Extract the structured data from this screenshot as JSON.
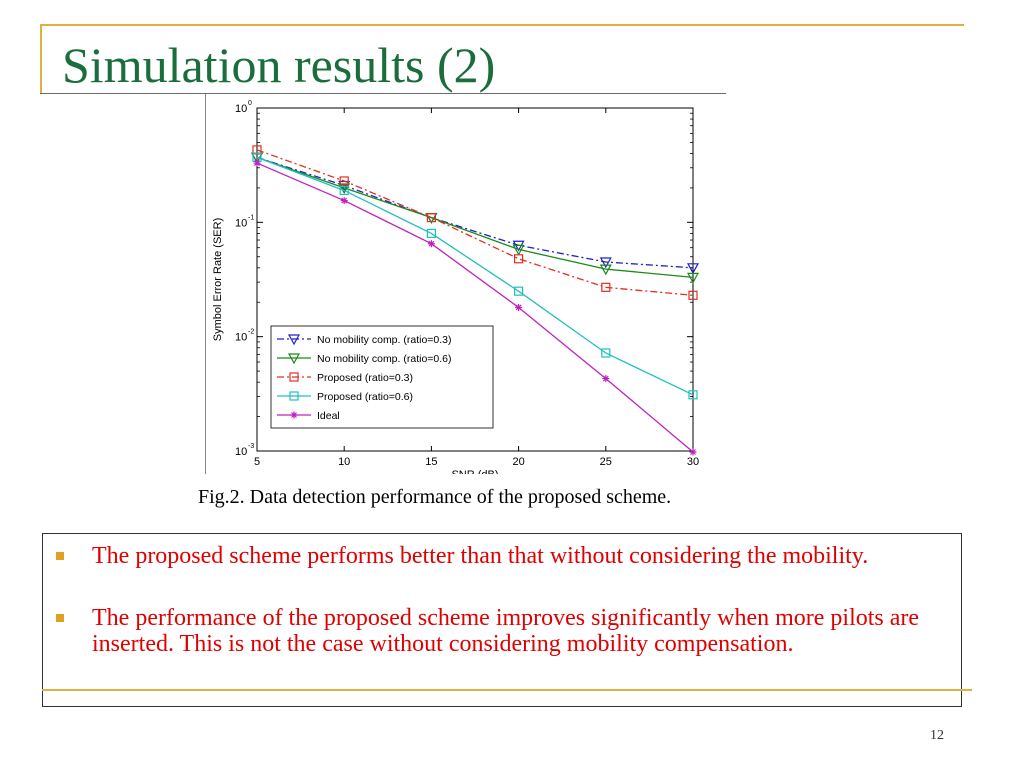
{
  "slide": {
    "title": "Simulation results (2)",
    "caption": "Fig.2. Data detection performance of the proposed scheme.",
    "bullets": [
      "The proposed scheme performs better than that without considering the mobility.",
      "The performance of the proposed scheme improves significantly when more pilots are inserted. This is not the case without considering mobility compensation."
    ],
    "page_number": "12",
    "colors": {
      "title": "#1a6e3c",
      "accent": "#e0b040",
      "bullet_text": "#e00000",
      "bullet_mark": "#e0a020"
    }
  },
  "chart_data": {
    "type": "line",
    "title": "",
    "xlabel": "SNR (dB)",
    "ylabel": "Symbol Error Rate (SER)",
    "x": [
      5,
      10,
      15,
      20,
      25,
      30
    ],
    "xlim": [
      5,
      30
    ],
    "ylim": [
      0.001,
      1
    ],
    "yscale": "log",
    "x_ticks": [
      "5",
      "10",
      "15",
      "20",
      "25",
      "30"
    ],
    "y_ticks": [
      {
        "base": "10",
        "exp": "0"
      },
      {
        "base": "10",
        "exp": "-1"
      },
      {
        "base": "10",
        "exp": "-2"
      },
      {
        "base": "10",
        "exp": "-3"
      }
    ],
    "legend_position": "bottom-left",
    "grid": false,
    "series": [
      {
        "name": "No mobility comp. (ratio=0.3)",
        "values": [
          0.37,
          0.21,
          0.11,
          0.063,
          0.045,
          0.04
        ],
        "color": "#2020c8",
        "dash": "dashdot",
        "marker": "triangle-down"
      },
      {
        "name": "No mobility comp. (ratio=0.6)",
        "values": [
          0.37,
          0.2,
          0.11,
          0.058,
          0.039,
          0.033
        ],
        "color": "#1a8a1a",
        "dash": "solid",
        "marker": "triangle-down"
      },
      {
        "name": "Proposed (ratio=0.3)",
        "values": [
          0.43,
          0.23,
          0.11,
          0.048,
          0.027,
          0.023
        ],
        "color": "#e03020",
        "dash": "dashdot",
        "marker": "square"
      },
      {
        "name": "Proposed (ratio=0.6)",
        "values": [
          0.37,
          0.19,
          0.08,
          0.025,
          0.0072,
          0.0031
        ],
        "color": "#20c0c0",
        "dash": "solid",
        "marker": "square"
      },
      {
        "name": "Ideal",
        "values": [
          0.33,
          0.155,
          0.065,
          0.018,
          0.0043,
          0.00098
        ],
        "color": "#c020c0",
        "dash": "solid",
        "marker": "star"
      }
    ]
  }
}
